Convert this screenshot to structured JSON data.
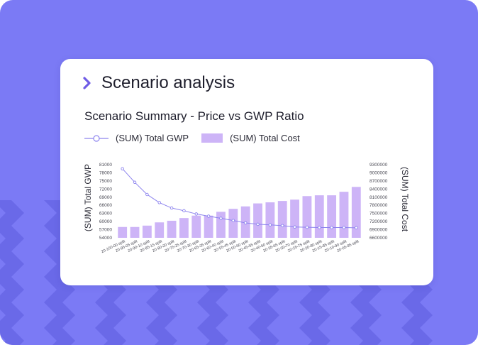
{
  "card": {
    "header_title": "Scenario analysis",
    "chevron_icon": "chevron-right-icon"
  },
  "colors": {
    "background": "#7b7af5",
    "chevron_pattern": "#6a69e8",
    "accent": "#6f5ce6",
    "bar_fill": "#cdb4f7",
    "line": "#8d84ee"
  },
  "chart_data": {
    "type": "bar+line",
    "title": "Scenario Summary - Price vs GWP Ratio",
    "legend": [
      "(SUM) Total GWP",
      "(SUM) Total Cost"
    ],
    "legend_position": "top-left",
    "ylabel_left": "(SUM) Total GWP",
    "ylabel_right": "(SUM) Total Cost",
    "grid": false,
    "categories": [
      "20-100-00 split",
      "20-95-05 split",
      "20-90-10 split",
      "20-85-15 split",
      "20-80-20 split",
      "20-75-25 split",
      "20-70-30 split",
      "20-65-35 split",
      "20-60-40 split",
      "20-55-45 split",
      "20-50-50 split",
      "20-45-55 split",
      "20-40-60 split",
      "20-35-65 split",
      "20-30-70 split",
      "20-25-75 split",
      "20-20-80 split",
      "20-15-85 split",
      "20-10-90 split",
      "20-05-95 split"
    ],
    "y_left_ticks": [
      81000,
      78000,
      75000,
      72000,
      69000,
      66000,
      63000,
      60000,
      57000,
      54000
    ],
    "y_left_range": [
      54000,
      81000
    ],
    "y_right_ticks": [
      9300000,
      9000000,
      8700000,
      8400000,
      8100000,
      7800000,
      7500000,
      7200000,
      6900000,
      6600000
    ],
    "y_right_range": [
      6600000,
      9300000
    ],
    "series": [
      {
        "name": "(SUM) Total Cost",
        "type": "bar",
        "axis": "right",
        "values": [
          7000000,
          7000000,
          7050000,
          7170000,
          7230000,
          7330000,
          7420000,
          7420000,
          7560000,
          7670000,
          7760000,
          7870000,
          7910000,
          7960000,
          8010000,
          8140000,
          8170000,
          8170000,
          8300000,
          8480000
        ]
      },
      {
        "name": "(SUM) Total GWP",
        "type": "line",
        "axis": "left",
        "values": [
          79500,
          74500,
          70000,
          67000,
          65000,
          64000,
          62800,
          62000,
          61200,
          60400,
          59500,
          59000,
          58800,
          58500,
          58000,
          57900,
          57800,
          57800,
          57800,
          57700
        ]
      }
    ]
  }
}
